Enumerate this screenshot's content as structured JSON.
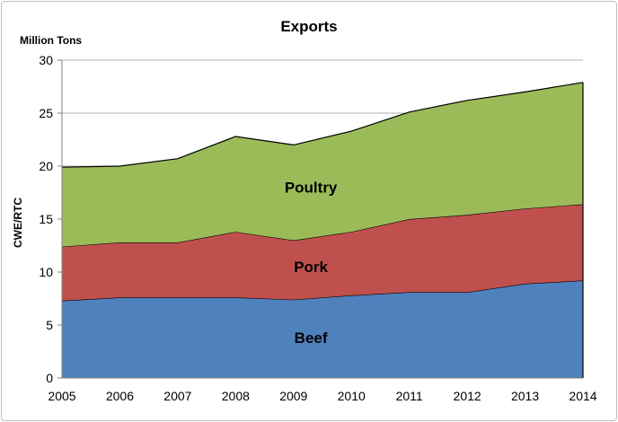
{
  "chart_data": {
    "type": "area",
    "stacked": true,
    "title": "Exports",
    "unit_label": "Million Tons",
    "ylabel": "CWE/RTC",
    "xlabel": "",
    "x": [
      2005,
      2006,
      2007,
      2008,
      2009,
      2010,
      2011,
      2012,
      2013,
      2014
    ],
    "ylim": [
      0,
      30
    ],
    "yticks": [
      0,
      5,
      10,
      15,
      20,
      25,
      30
    ],
    "grid": true,
    "legend": "none",
    "series": [
      {
        "name": "Beef",
        "color": "#4f81bd",
        "values": [
          7.3,
          7.6,
          7.6,
          7.6,
          7.4,
          7.8,
          8.1,
          8.1,
          8.9,
          9.2
        ]
      },
      {
        "name": "Pork",
        "color": "#c0504d",
        "values": [
          5.1,
          5.2,
          5.2,
          6.2,
          5.6,
          6.0,
          6.9,
          7.3,
          7.1,
          7.2
        ]
      },
      {
        "name": "Poultry",
        "color": "#9bbb59",
        "values": [
          7.5,
          7.2,
          7.9,
          9.0,
          9.0,
          9.5,
          10.1,
          10.8,
          11.0,
          11.5
        ]
      }
    ]
  }
}
